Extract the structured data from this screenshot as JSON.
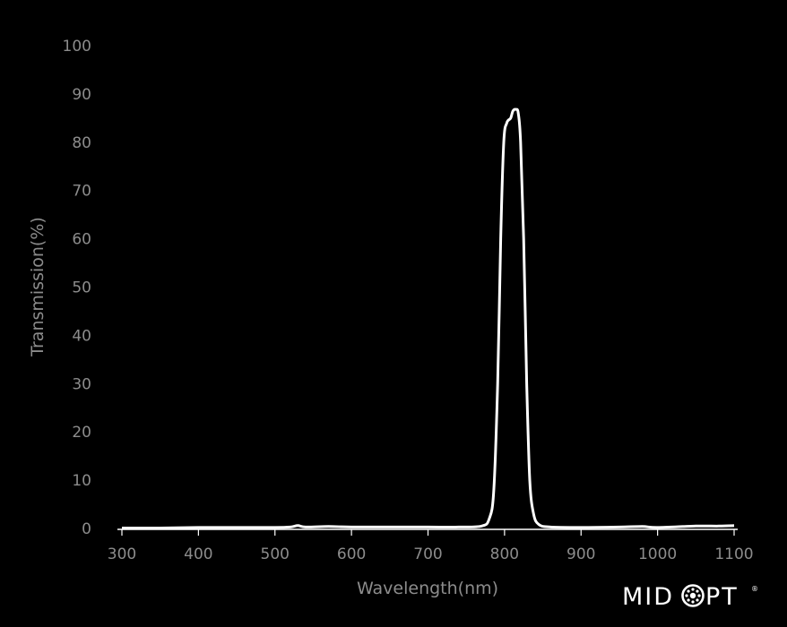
{
  "chart_data": {
    "type": "line",
    "title": "",
    "xlabel": "Wavelength(nm)",
    "ylabel": "Transmission(%)",
    "xlim": [
      300,
      1100
    ],
    "ylim": [
      0,
      100
    ],
    "x_ticks": [
      300,
      400,
      500,
      600,
      700,
      800,
      900,
      1000,
      1100
    ],
    "y_ticks": [
      0,
      10,
      20,
      30,
      40,
      50,
      60,
      70,
      80,
      90,
      100
    ],
    "grid": false,
    "series": [
      {
        "name": "",
        "color": "#ffffff",
        "points": [
          [
            300,
            0.1
          ],
          [
            350,
            0.1
          ],
          [
            400,
            0.2
          ],
          [
            450,
            0.2
          ],
          [
            500,
            0.2
          ],
          [
            520,
            0.3
          ],
          [
            530,
            0.6
          ],
          [
            540,
            0.3
          ],
          [
            570,
            0.4
          ],
          [
            600,
            0.3
          ],
          [
            650,
            0.3
          ],
          [
            700,
            0.3
          ],
          [
            740,
            0.3
          ],
          [
            770,
            0.5
          ],
          [
            780,
            2
          ],
          [
            786,
            8
          ],
          [
            791,
            30
          ],
          [
            795,
            60
          ],
          [
            799,
            80
          ],
          [
            803,
            84
          ],
          [
            808,
            85
          ],
          [
            811,
            86.5
          ],
          [
            815,
            86.8
          ],
          [
            818,
            86
          ],
          [
            821,
            80
          ],
          [
            825,
            60
          ],
          [
            829,
            30
          ],
          [
            833,
            10
          ],
          [
            838,
            3
          ],
          [
            845,
            0.8
          ],
          [
            860,
            0.3
          ],
          [
            900,
            0.2
          ],
          [
            950,
            0.3
          ],
          [
            980,
            0.4
          ],
          [
            1000,
            0.2
          ],
          [
            1050,
            0.5
          ],
          [
            1080,
            0.5
          ],
          [
            1100,
            0.6
          ]
        ]
      }
    ]
  },
  "colors": {
    "background": "#000000",
    "tick_label": "#8c8c8c",
    "axis_title": "#8c8c8c",
    "axis_line": "#ffffff",
    "curve": "#ffffff"
  },
  "logo": {
    "text_left": "MID",
    "text_right": "PT",
    "icon": "lens-aperture-icon",
    "trademark": "®"
  }
}
